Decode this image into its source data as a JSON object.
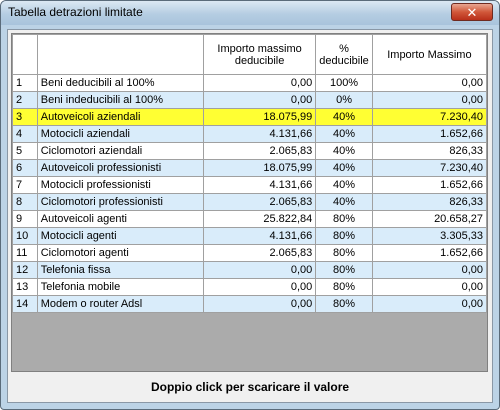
{
  "window": {
    "title": "Tabella detrazioni limitate",
    "close_label": "✕"
  },
  "table": {
    "columns": [
      "",
      "",
      "Importo massimo deducibile",
      "% deducibile",
      "Importo Massimo"
    ],
    "rows": [
      {
        "n": "1",
        "desc": "Beni deducibili al 100%",
        "max": "0,00",
        "pct": "100%",
        "tot": "0,00"
      },
      {
        "n": "2",
        "desc": "Beni indeducibili al 100%",
        "max": "0,00",
        "pct": "0%",
        "tot": "0,00"
      },
      {
        "n": "3",
        "desc": "Autoveicoli aziendali",
        "max": "18.075,99",
        "pct": "40%",
        "tot": "7.230,40"
      },
      {
        "n": "4",
        "desc": "Motocicli aziendali",
        "max": "4.131,66",
        "pct": "40%",
        "tot": "1.652,66"
      },
      {
        "n": "5",
        "desc": "Ciclomotori aziendali",
        "max": "2.065,83",
        "pct": "40%",
        "tot": "826,33"
      },
      {
        "n": "6",
        "desc": "Autoveicoli professionisti",
        "max": "18.075,99",
        "pct": "40%",
        "tot": "7.230,40"
      },
      {
        "n": "7",
        "desc": "Motocicli professionisti",
        "max": "4.131,66",
        "pct": "40%",
        "tot": "1.652,66"
      },
      {
        "n": "8",
        "desc": "Ciclomotori professionisti",
        "max": "2.065,83",
        "pct": "40%",
        "tot": "826,33"
      },
      {
        "n": "9",
        "desc": "Autoveicoli agenti",
        "max": "25.822,84",
        "pct": "80%",
        "tot": "20.658,27"
      },
      {
        "n": "10",
        "desc": "Motocicli agenti",
        "max": "4.131,66",
        "pct": "80%",
        "tot": "3.305,33"
      },
      {
        "n": "11",
        "desc": "Ciclomotori agenti",
        "max": "2.065,83",
        "pct": "80%",
        "tot": "1.652,66"
      },
      {
        "n": "12",
        "desc": "Telefonia fissa",
        "max": "0,00",
        "pct": "80%",
        "tot": "0,00"
      },
      {
        "n": "13",
        "desc": "Telefonia mobile",
        "max": "0,00",
        "pct": "80%",
        "tot": "0,00"
      },
      {
        "n": "14",
        "desc": "Modem o router Adsl",
        "max": "0,00",
        "pct": "80%",
        "tot": "0,00"
      }
    ],
    "selected_row": "3"
  },
  "footer": {
    "hint": "Doppio click per scaricare il valore"
  },
  "colors": {
    "selected": "#ffff33",
    "alt_row": "#d9ecfa"
  }
}
